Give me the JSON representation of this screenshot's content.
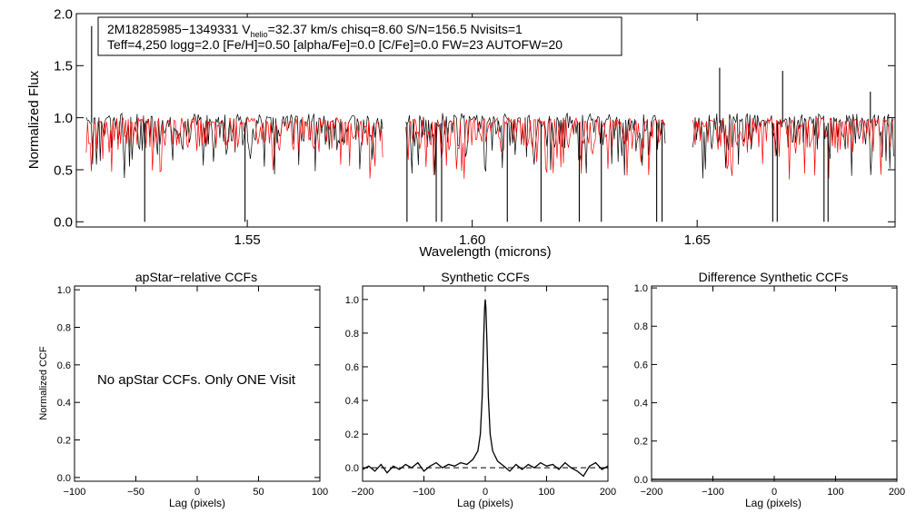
{
  "chart_data": [
    {
      "type": "line",
      "id": "spectrum",
      "xlabel": "Wavelength (microns)",
      "ylabel": "Normalized Flux",
      "xlim": [
        1.512,
        1.694
      ],
      "ylim": [
        -0.05,
        2.0
      ],
      "xticks": [
        {
          "value": 1.55,
          "label": "1.55"
        },
        {
          "value": 1.6,
          "label": "1.60"
        },
        {
          "value": 1.65,
          "label": "1.65"
        }
      ],
      "yticks": [
        {
          "value": 0.0,
          "label": "0.0"
        },
        {
          "value": 0.5,
          "label": "0.5"
        },
        {
          "value": 1.0,
          "label": "1.0"
        },
        {
          "value": 1.5,
          "label": "1.5"
        },
        {
          "value": 2.0,
          "label": "2.0"
        }
      ],
      "chips": [
        [
          1.5142,
          1.5802
        ],
        [
          1.5852,
          1.643
        ],
        [
          1.649,
          1.6938
        ]
      ],
      "series": [
        {
          "name": "observed",
          "color": "#000000"
        },
        {
          "name": "synthetic",
          "color": "#ff0000"
        }
      ],
      "spikes": [
        {
          "x": 1.5154,
          "y": 1.88
        },
        {
          "x": 1.5272,
          "y": 0.0
        },
        {
          "x": 1.5495,
          "y": 0.0
        },
        {
          "x": 1.5855,
          "y": 0.0
        },
        {
          "x": 1.592,
          "y": 0.0
        },
        {
          "x": 1.5932,
          "y": 0.0
        },
        {
          "x": 1.6078,
          "y": 0.0
        },
        {
          "x": 1.6153,
          "y": 0.0
        },
        {
          "x": 1.6238,
          "y": 0.0
        },
        {
          "x": 1.6287,
          "y": 0.0
        },
        {
          "x": 1.641,
          "y": 0.0
        },
        {
          "x": 1.6422,
          "y": 0.0
        },
        {
          "x": 1.655,
          "y": 1.48
        },
        {
          "x": 1.6668,
          "y": 0.0
        },
        {
          "x": 1.6678,
          "y": 0.0
        },
        {
          "x": 1.669,
          "y": 1.45
        },
        {
          "x": 1.6782,
          "y": 0.0
        },
        {
          "x": 1.6791,
          "y": 0.0
        },
        {
          "x": 1.6885,
          "y": 1.25
        }
      ],
      "legend_line1": "2M18285985−1349331  V",
      "legend_sub": "helio",
      "legend_line1b": "=32.37 km/s  chisq=8.60  S/N=156.5  Nvisits=1",
      "legend_line2": "Teff=4,250 logg=2.0 [Fe/H]=0.50 [alpha/Fe]=0.0 [C/Fe]=0.0 FW=23 AUTOFW=20"
    },
    {
      "type": "line",
      "id": "apstar_ccf",
      "title": "apStar−relative CCFs",
      "xlabel": "Lag (pixels)",
      "ylabel": "Normalized CCF",
      "xlim": [
        -100,
        100
      ],
      "ylim": [
        -0.02,
        1.02
      ],
      "xticks": [
        {
          "value": -100,
          "label": "−100"
        },
        {
          "value": -50,
          "label": "−50"
        },
        {
          "value": 0,
          "label": "0"
        },
        {
          "value": 50,
          "label": "50"
        },
        {
          "value": 100,
          "label": "100"
        }
      ],
      "yticks": [
        {
          "value": 0.0,
          "label": "0.0"
        },
        {
          "value": 0.2,
          "label": "0.2"
        },
        {
          "value": 0.4,
          "label": "0.4"
        },
        {
          "value": 0.6,
          "label": "0.6"
        },
        {
          "value": 0.8,
          "label": "0.8"
        },
        {
          "value": 1.0,
          "label": "1.0"
        }
      ],
      "annotation": "No apStar CCFs.  Only ONE Visit"
    },
    {
      "type": "line",
      "id": "synthetic_ccf",
      "title": "Synthetic CCFs",
      "xlabel": "Lag (pixels)",
      "xlim": [
        -200,
        200
      ],
      "ylim": [
        -0.08,
        1.08
      ],
      "xticks": [
        {
          "value": -200,
          "label": "−200"
        },
        {
          "value": -100,
          "label": "−100"
        },
        {
          "value": 0,
          "label": "0"
        },
        {
          "value": 100,
          "label": "100"
        },
        {
          "value": 200,
          "label": "200"
        }
      ],
      "yticks": [
        {
          "value": 0.0,
          "label": "0.0"
        },
        {
          "value": 0.2,
          "label": "0.2"
        },
        {
          "value": 0.4,
          "label": "0.4"
        },
        {
          "value": 0.6,
          "label": "0.6"
        },
        {
          "value": 0.8,
          "label": "0.8"
        },
        {
          "value": 1.0,
          "label": "1.0"
        }
      ],
      "peak": {
        "lag": 0,
        "value": 1.0
      },
      "series": [
        {
          "name": "ccf",
          "points": [
            [
              -200,
              -0.01
            ],
            [
              -190,
              0.01
            ],
            [
              -180,
              -0.02
            ],
            [
              -170,
              0.02
            ],
            [
              -160,
              -0.03
            ],
            [
              -150,
              0.01
            ],
            [
              -140,
              -0.01
            ],
            [
              -130,
              0.02
            ],
            [
              -120,
              0.0
            ],
            [
              -110,
              0.03
            ],
            [
              -100,
              -0.02
            ],
            [
              -90,
              0.01
            ],
            [
              -80,
              0.03
            ],
            [
              -70,
              0.0
            ],
            [
              -60,
              0.02
            ],
            [
              -50,
              0.01
            ],
            [
              -40,
              0.03
            ],
            [
              -30,
              0.02
            ],
            [
              -20,
              0.05
            ],
            [
              -12,
              0.1
            ],
            [
              -8,
              0.2
            ],
            [
              -5,
              0.42
            ],
            [
              -3,
              0.72
            ],
            [
              -1,
              0.95
            ],
            [
              0,
              1.0
            ],
            [
              1,
              0.95
            ],
            [
              3,
              0.72
            ],
            [
              5,
              0.42
            ],
            [
              8,
              0.2
            ],
            [
              12,
              0.1
            ],
            [
              20,
              0.04
            ],
            [
              30,
              0.01
            ],
            [
              40,
              -0.02
            ],
            [
              50,
              0.02
            ],
            [
              60,
              -0.01
            ],
            [
              70,
              0.02
            ],
            [
              80,
              0.0
            ],
            [
              90,
              0.03
            ],
            [
              100,
              0.01
            ],
            [
              110,
              0.02
            ],
            [
              120,
              -0.01
            ],
            [
              130,
              0.03
            ],
            [
              140,
              0.0
            ],
            [
              150,
              -0.02
            ],
            [
              160,
              -0.05
            ],
            [
              170,
              0.01
            ],
            [
              180,
              0.03
            ],
            [
              190,
              -0.01
            ],
            [
              200,
              0.01
            ]
          ]
        },
        {
          "name": "zero",
          "style": "dashed",
          "value": 0.0
        }
      ]
    },
    {
      "type": "line",
      "id": "difference_ccf",
      "title": "Difference Synthetic CCFs",
      "xlabel": "Lag (pixels)",
      "xlim": [
        -200,
        200
      ],
      "ylim": [
        -0.01,
        1.01
      ],
      "xticks": [
        {
          "value": -200,
          "label": "−200"
        },
        {
          "value": -100,
          "label": "−100"
        },
        {
          "value": 0,
          "label": "0"
        },
        {
          "value": 100,
          "label": "100"
        },
        {
          "value": 200,
          "label": "200"
        }
      ],
      "yticks": [
        {
          "value": 0.0,
          "label": "0.0"
        },
        {
          "value": 0.2,
          "label": "0.2"
        },
        {
          "value": 0.4,
          "label": "0.4"
        },
        {
          "value": 0.6,
          "label": "0.6"
        },
        {
          "value": 0.8,
          "label": "0.8"
        },
        {
          "value": 1.0,
          "label": "1.0"
        }
      ],
      "series": [
        {
          "name": "difference",
          "points": [
            [
              -200,
              0.0
            ],
            [
              200,
              0.0
            ]
          ]
        }
      ]
    }
  ]
}
